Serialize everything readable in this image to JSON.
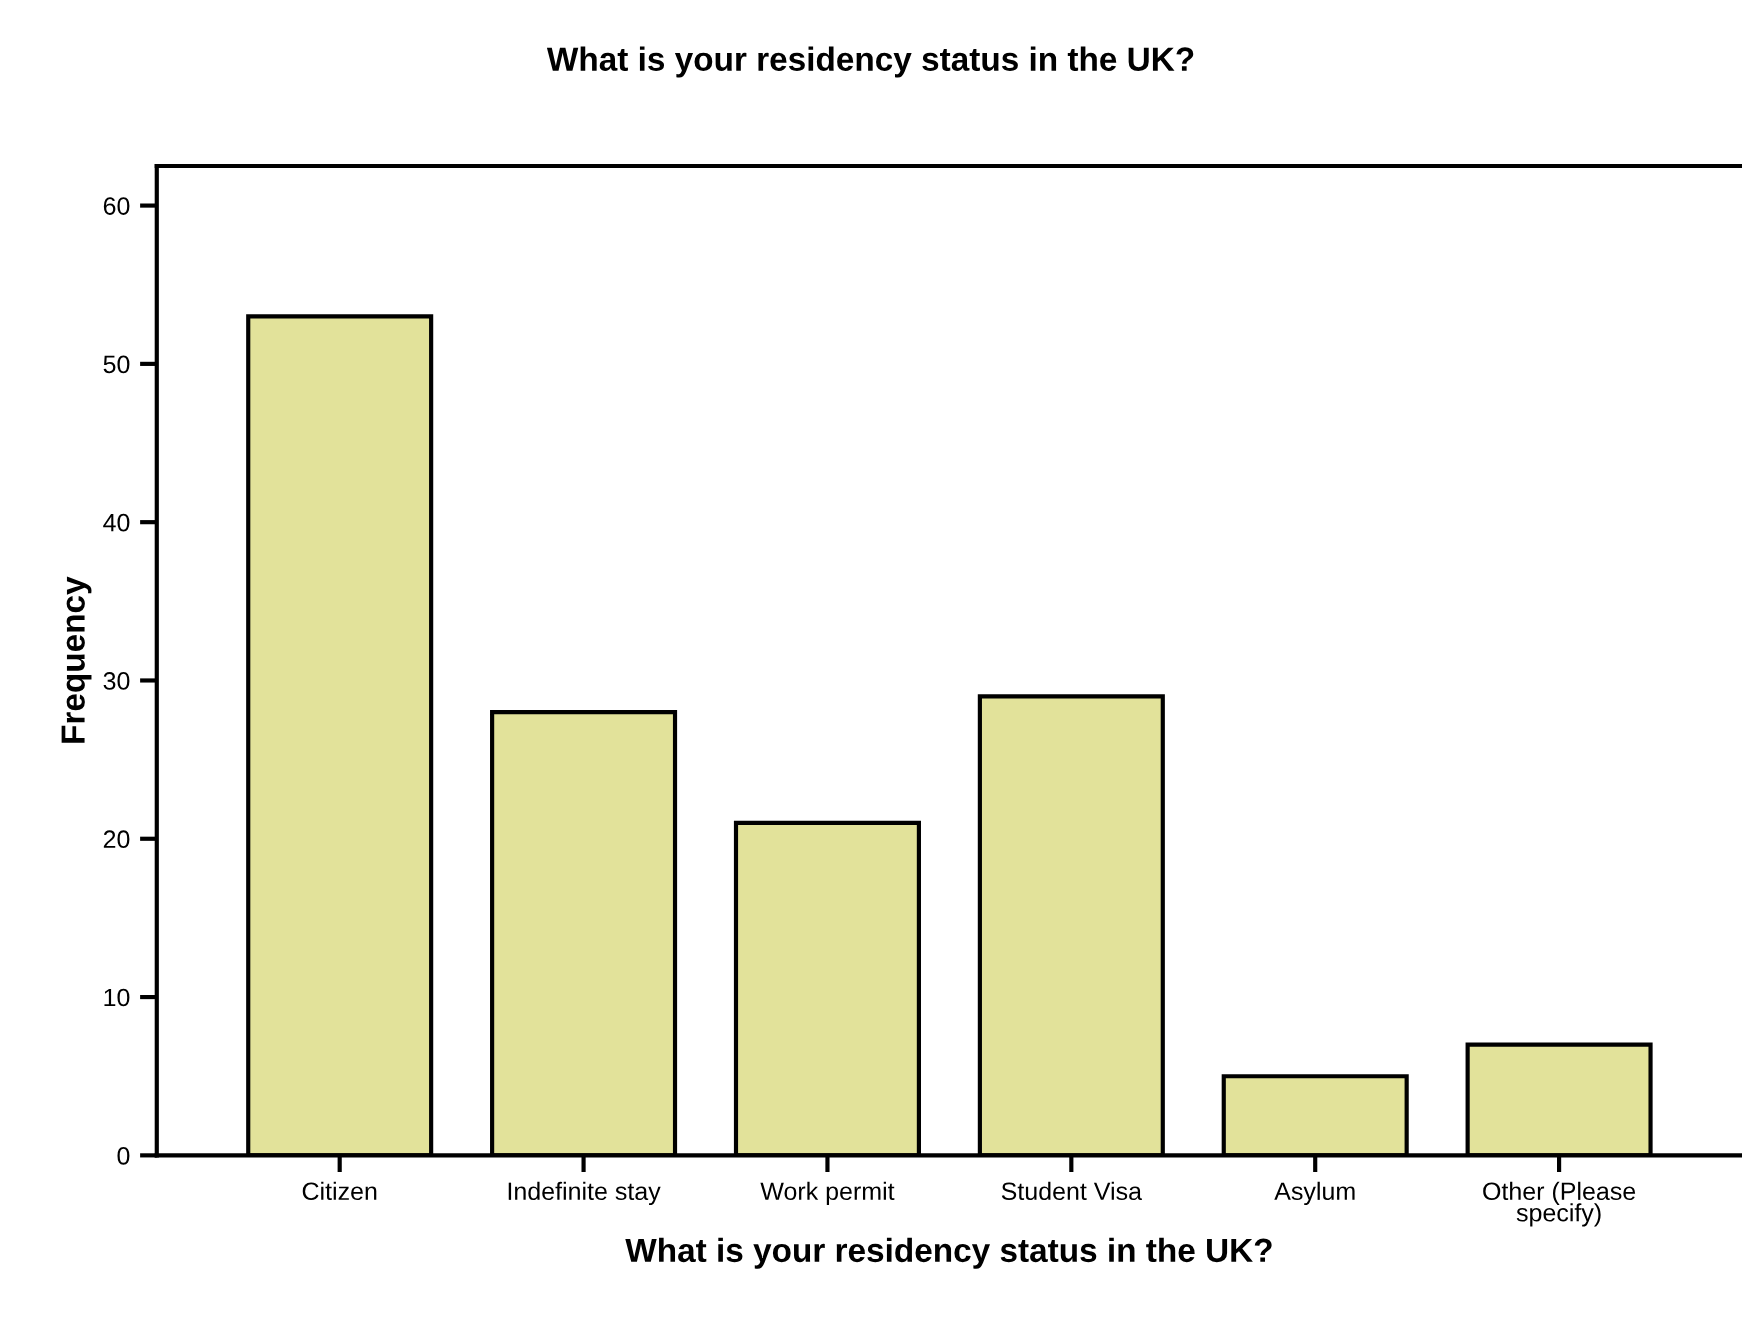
{
  "chart_data": {
    "type": "bar",
    "title": "What is your residency status in the UK?",
    "xlabel": "What is your residency status in the UK?",
    "ylabel": "Frequency",
    "categories": [
      "Citizen",
      "Indefinite stay",
      "Work permit",
      "Student Visa",
      "Asylum",
      "Other (Please\nspecify)"
    ],
    "values": [
      53,
      28,
      21,
      29,
      5,
      7
    ],
    "color": "#e2e29a",
    "ylim": [
      0,
      62.5
    ],
    "yticks": [
      0,
      10,
      20,
      30,
      40,
      50,
      60
    ],
    "grid": false
  }
}
